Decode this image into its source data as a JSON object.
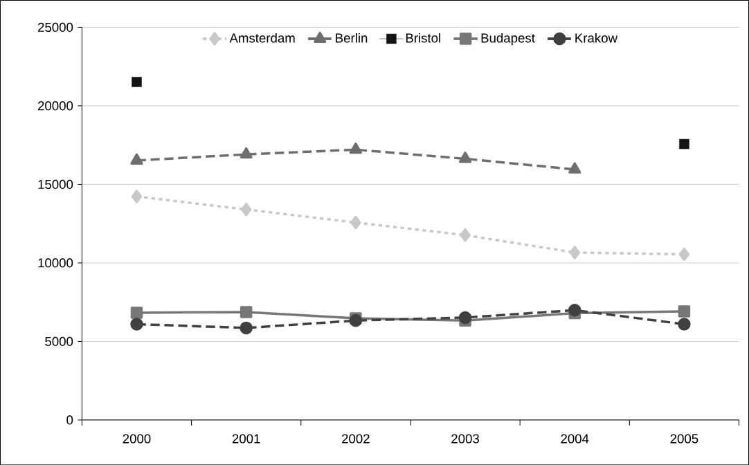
{
  "chart_data": {
    "type": "line",
    "categories": [
      "2000",
      "2001",
      "2002",
      "2003",
      "2004",
      "2005"
    ],
    "series": [
      {
        "name": "Amsterdam",
        "color": "#c8c8c8",
        "marker": "diamond",
        "line_style": "dotted",
        "values": [
          14230,
          13400,
          12570,
          11770,
          10660,
          10550
        ]
      },
      {
        "name": "Berlin",
        "color": "#6e6e6e",
        "marker": "triangle",
        "line_style": "dashed",
        "values": [
          16520,
          16910,
          17210,
          16630,
          15950,
          null
        ]
      },
      {
        "name": "Bristol",
        "type": "scatter",
        "color": "#141414",
        "marker": "square",
        "values": [
          21520,
          null,
          null,
          null,
          null,
          17570
        ]
      },
      {
        "name": "Budapest",
        "color": "#777777",
        "marker": "square",
        "line_style": "solid",
        "values": [
          6830,
          6870,
          6470,
          6330,
          6800,
          6910
        ]
      },
      {
        "name": "Krakow",
        "color": "#404040",
        "marker": "circle",
        "line_style": "dashed",
        "values": [
          6100,
          5860,
          6330,
          6520,
          6990,
          6100
        ]
      }
    ],
    "ylim": [
      0,
      25000
    ],
    "yticks": [
      0,
      5000,
      10000,
      15000,
      20000,
      25000
    ],
    "grid": "y",
    "legend": "top"
  }
}
